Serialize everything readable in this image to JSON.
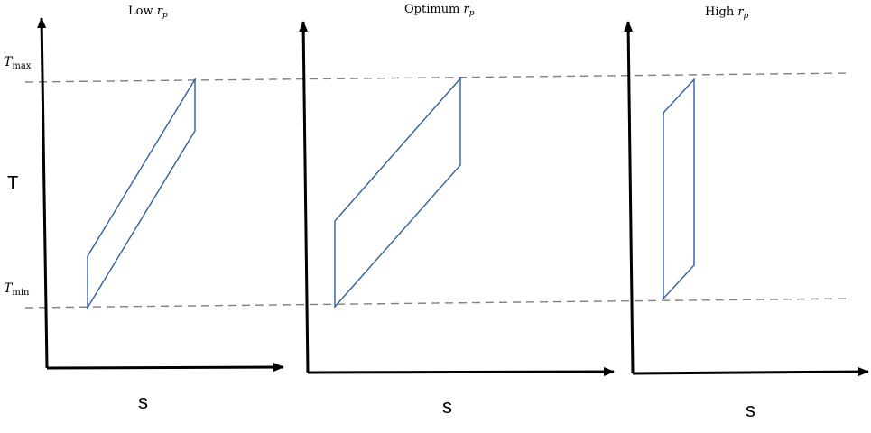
{
  "diagram": {
    "y_axis_label": "T",
    "x_axis_label": "s",
    "tmax_label": {
      "base": "T",
      "sub": "max"
    },
    "tmin_label": {
      "base": "T",
      "sub": "min"
    },
    "panels": [
      {
        "title_text": "Low ",
        "title_var": "r",
        "title_sub": "p"
      },
      {
        "title_text": "Optimum ",
        "title_var": "r",
        "title_sub": "p"
      },
      {
        "title_text": "High ",
        "title_var": "r",
        "title_sub": "p"
      }
    ],
    "colors": {
      "axis": "#000000",
      "cycle": "#2f5f9f",
      "guide": "#808080"
    }
  }
}
